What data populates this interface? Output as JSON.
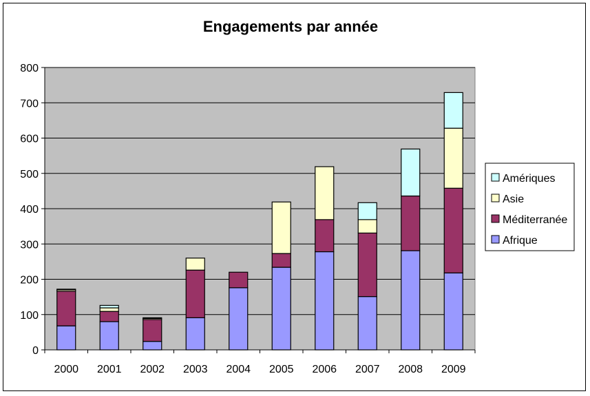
{
  "chart_data": {
    "type": "bar",
    "stacked": true,
    "title": "Engagements par année",
    "xlabel": "",
    "ylabel": "",
    "ylim": [
      0,
      800
    ],
    "yticks": [
      0,
      100,
      200,
      300,
      400,
      500,
      600,
      700,
      800
    ],
    "grid": true,
    "legend_position": "right",
    "categories": [
      "2000",
      "2001",
      "2002",
      "2003",
      "2004",
      "2005",
      "2006",
      "2007",
      "2008",
      "2009"
    ],
    "series": [
      {
        "name": "Afrique",
        "color": "#9999FF",
        "values": [
          68,
          80,
          24,
          91,
          176,
          234,
          278,
          151,
          281,
          218
        ]
      },
      {
        "name": "Méditerranée",
        "color": "#993366",
        "values": [
          98,
          29,
          62,
          135,
          44,
          39,
          91,
          180,
          155,
          240
        ]
      },
      {
        "name": "Asie",
        "color": "#FFFFCC",
        "values": [
          4,
          10,
          3,
          34,
          0,
          146,
          150,
          38,
          0,
          170
        ]
      },
      {
        "name": "Amériques",
        "color": "#CCFFFF",
        "values": [
          2,
          7,
          2,
          0,
          0,
          0,
          0,
          48,
          133,
          101
        ]
      }
    ],
    "plot_background": "#C0C0C0"
  }
}
